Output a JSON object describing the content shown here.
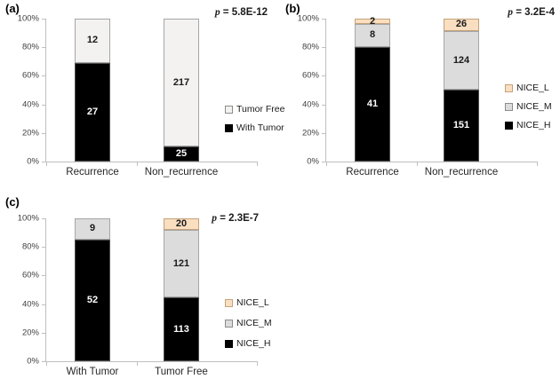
{
  "chart_data": [
    {
      "panel": "(a)",
      "type": "bar",
      "stacking": "100%-stacked",
      "p": {
        "sym": "p",
        "rest": " = 5.8E-12"
      },
      "categories": [
        "Recurrence",
        "Non_recurrence"
      ],
      "series": [
        {
          "name": "With Tumor",
          "values": [
            27,
            25
          ],
          "color": "#000000",
          "border_color": "#4d4d4d",
          "text_color": "#ffffff"
        },
        {
          "name": "Tumor Free",
          "values": [
            12,
            217
          ],
          "color": "#f3f2f0",
          "border_color": "#a6a6a6",
          "text_color": "#1a1a1a"
        }
      ],
      "y_ticks": [
        "100%",
        "80%",
        "60%",
        "40%",
        "20%",
        "0%"
      ],
      "ylim": [
        0,
        100
      ],
      "legend_position": "right"
    },
    {
      "panel": "(b)",
      "type": "bar",
      "stacking": "100%-stacked",
      "p": {
        "sym": "p",
        "rest": " = 3.2E-4"
      },
      "categories": [
        "Recurrence",
        "Non_recurrence"
      ],
      "series": [
        {
          "name": "NICE_H",
          "values": [
            41,
            151
          ],
          "color": "#000000",
          "border_color": "#4d4d4d",
          "text_color": "#ffffff"
        },
        {
          "name": "NICE_M",
          "values": [
            8,
            124
          ],
          "color": "#dcdcdc",
          "border_color": "#a6a6a6",
          "text_color": "#1a1a1a"
        },
        {
          "name": "NICE_L",
          "values": [
            2,
            26
          ],
          "color": "#fadec0",
          "border_color": "#c3a37c",
          "text_color": "#1a1a1a"
        }
      ],
      "y_ticks": [
        "100%",
        "80%",
        "60%",
        "40%",
        "20%",
        "0%"
      ],
      "ylim": [
        0,
        100
      ],
      "legend_position": "right"
    },
    {
      "panel": "(c)",
      "type": "bar",
      "stacking": "100%-stacked",
      "p": {
        "sym": "p",
        "rest": " = 2.3E-7"
      },
      "categories": [
        "With Tumor",
        "Tumor Free"
      ],
      "series": [
        {
          "name": "NICE_H",
          "values": [
            52,
            113
          ],
          "color": "#000000",
          "border_color": "#4d4d4d",
          "text_color": "#ffffff"
        },
        {
          "name": "NICE_M",
          "values": [
            9,
            121
          ],
          "color": "#dcdcdc",
          "border_color": "#a6a6a6",
          "text_color": "#1a1a1a"
        },
        {
          "name": "NICE_L",
          "values": [
            0,
            20
          ],
          "color": "#fadec0",
          "border_color": "#c3a37c",
          "text_color": "#1a1a1a"
        }
      ],
      "y_ticks": [
        "100%",
        "80%",
        "60%",
        "40%",
        "20%",
        "0%"
      ],
      "ylim": [
        0,
        100
      ],
      "legend_position": "right"
    }
  ]
}
